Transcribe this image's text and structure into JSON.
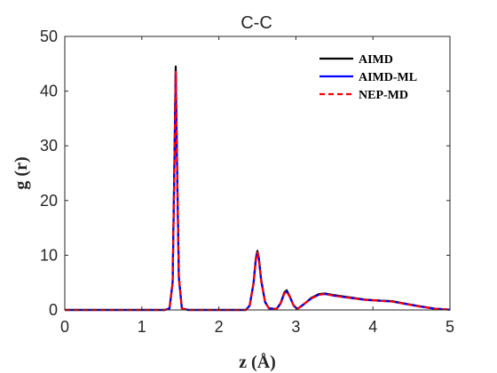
{
  "chart_data": {
    "type": "line",
    "title": "C-C",
    "xlabel": "z (Å)",
    "ylabel": "g (r)",
    "xlim": [
      0,
      5
    ],
    "ylim": [
      0,
      50
    ],
    "xticks": [
      "0",
      "1",
      "2",
      "3",
      "4",
      "5"
    ],
    "yticks": [
      "0",
      "10",
      "20",
      "30",
      "40",
      "50"
    ],
    "grid": false,
    "legend_position": "top-right",
    "series": [
      {
        "name": "AIMD",
        "color": "#000000",
        "style": "solid",
        "points": [
          [
            0,
            0
          ],
          [
            1.3,
            0
          ],
          [
            1.36,
            0.3
          ],
          [
            1.4,
            5
          ],
          [
            1.42,
            25
          ],
          [
            1.44,
            44.5
          ],
          [
            1.46,
            25
          ],
          [
            1.48,
            6
          ],
          [
            1.52,
            0.3
          ],
          [
            1.6,
            0
          ],
          [
            2.35,
            0
          ],
          [
            2.4,
            0.8
          ],
          [
            2.45,
            5
          ],
          [
            2.48,
            9.5
          ],
          [
            2.5,
            10.8
          ],
          [
            2.52,
            9.5
          ],
          [
            2.55,
            5.5
          ],
          [
            2.6,
            1.5
          ],
          [
            2.65,
            0.3
          ],
          [
            2.75,
            0.2
          ],
          [
            2.8,
            1.2
          ],
          [
            2.85,
            3.2
          ],
          [
            2.88,
            3.6
          ],
          [
            2.92,
            2.5
          ],
          [
            2.97,
            0.8
          ],
          [
            3.02,
            0.2
          ],
          [
            3.1,
            1.0
          ],
          [
            3.2,
            2.2
          ],
          [
            3.3,
            2.9
          ],
          [
            3.38,
            3.0
          ],
          [
            3.5,
            2.7
          ],
          [
            3.7,
            2.3
          ],
          [
            3.9,
            1.9
          ],
          [
            4.1,
            1.7
          ],
          [
            4.25,
            1.6
          ],
          [
            4.4,
            1.2
          ],
          [
            4.6,
            0.7
          ],
          [
            4.8,
            0.25
          ],
          [
            5.0,
            0.05
          ]
        ]
      },
      {
        "name": "AIMD-ML",
        "color": "#0000ff",
        "style": "solid",
        "points": [
          [
            0,
            0
          ],
          [
            1.3,
            0
          ],
          [
            1.36,
            0.3
          ],
          [
            1.4,
            5
          ],
          [
            1.42,
            24
          ],
          [
            1.44,
            43.5
          ],
          [
            1.46,
            24
          ],
          [
            1.48,
            6
          ],
          [
            1.52,
            0.3
          ],
          [
            1.6,
            0
          ],
          [
            2.35,
            0
          ],
          [
            2.4,
            0.8
          ],
          [
            2.45,
            4.8
          ],
          [
            2.48,
            9.2
          ],
          [
            2.5,
            10.5
          ],
          [
            2.52,
            9.2
          ],
          [
            2.55,
            5.3
          ],
          [
            2.6,
            1.4
          ],
          [
            2.65,
            0.3
          ],
          [
            2.75,
            0.2
          ],
          [
            2.8,
            1.1
          ],
          [
            2.85,
            3.0
          ],
          [
            2.88,
            3.4
          ],
          [
            2.92,
            2.4
          ],
          [
            2.97,
            0.8
          ],
          [
            3.02,
            0.2
          ],
          [
            3.1,
            1.0
          ],
          [
            3.2,
            2.1
          ],
          [
            3.3,
            2.8
          ],
          [
            3.38,
            2.9
          ],
          [
            3.5,
            2.6
          ],
          [
            3.7,
            2.2
          ],
          [
            3.9,
            1.85
          ],
          [
            4.1,
            1.65
          ],
          [
            4.25,
            1.55
          ],
          [
            4.4,
            1.15
          ],
          [
            4.6,
            0.65
          ],
          [
            4.8,
            0.25
          ],
          [
            5.0,
            0.05
          ]
        ]
      },
      {
        "name": "NEP-MD",
        "color": "#ff0000",
        "style": "dashed",
        "points": [
          [
            0,
            0
          ],
          [
            1.3,
            0
          ],
          [
            1.36,
            0.3
          ],
          [
            1.4,
            5
          ],
          [
            1.42,
            24
          ],
          [
            1.44,
            43.5
          ],
          [
            1.46,
            24
          ],
          [
            1.48,
            6
          ],
          [
            1.52,
            0.3
          ],
          [
            1.6,
            0
          ],
          [
            2.35,
            0
          ],
          [
            2.4,
            0.8
          ],
          [
            2.45,
            4.8
          ],
          [
            2.48,
            9.2
          ],
          [
            2.5,
            10.5
          ],
          [
            2.52,
            9.2
          ],
          [
            2.55,
            5.3
          ],
          [
            2.6,
            1.4
          ],
          [
            2.65,
            0.3
          ],
          [
            2.75,
            0.2
          ],
          [
            2.8,
            1.1
          ],
          [
            2.85,
            3.0
          ],
          [
            2.88,
            3.4
          ],
          [
            2.92,
            2.4
          ],
          [
            2.97,
            0.8
          ],
          [
            3.02,
            0.2
          ],
          [
            3.1,
            1.0
          ],
          [
            3.2,
            2.1
          ],
          [
            3.3,
            2.8
          ],
          [
            3.38,
            2.9
          ],
          [
            3.5,
            2.6
          ],
          [
            3.7,
            2.2
          ],
          [
            3.9,
            1.85
          ],
          [
            4.1,
            1.65
          ],
          [
            4.25,
            1.55
          ],
          [
            4.4,
            1.15
          ],
          [
            4.6,
            0.65
          ],
          [
            4.8,
            0.25
          ],
          [
            5.0,
            0.05
          ]
        ]
      }
    ]
  }
}
